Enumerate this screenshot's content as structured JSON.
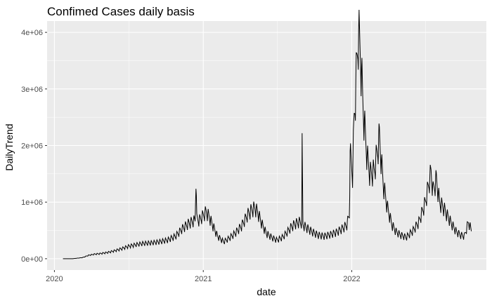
{
  "chart_data": {
    "type": "line",
    "title": "Confimed Cases daily basis",
    "xlabel": "date",
    "ylabel": "DailyTrend",
    "x_ticks": [
      "2020",
      "2021",
      "2022"
    ],
    "y_ticks": [
      "0e+00",
      "1e+06",
      "2e+06",
      "3e+06",
      "4e+06"
    ],
    "xlim": [
      "2019-12-14",
      "2022-11-28"
    ],
    "ylim": [
      -200000,
      4200000
    ],
    "grid": true,
    "background": "#ebebeb",
    "grid_color": "#ffffff",
    "line_color": "#000000",
    "series": [
      {
        "x": [
          "2020-01-22",
          "2020-02-15",
          "2020-03-10",
          "2020-03-25",
          "2020-04-08",
          "2020-04-22",
          "2020-05-10",
          "2020-05-28",
          "2020-06-15",
          "2020-07-01",
          "2020-07-20",
          "2020-08-05",
          "2020-08-25",
          "2020-09-15",
          "2020-10-05",
          "2020-10-25",
          "2020-11-10",
          "2020-11-25",
          "2020-12-05",
          "2020-12-12",
          "2020-12-14",
          "2020-12-16",
          "2020-12-22",
          "2020-12-31",
          "2021-01-08",
          "2021-01-15",
          "2021-01-25",
          "2021-02-05",
          "2021-02-20",
          "2021-03-05",
          "2021-03-20",
          "2021-04-05",
          "2021-04-20",
          "2021-05-01",
          "2021-05-08",
          "2021-05-15",
          "2021-05-25",
          "2021-06-05",
          "2021-06-20",
          "2021-07-01",
          "2021-07-15",
          "2021-07-25",
          "2021-08-05",
          "2021-08-15",
          "2021-08-25",
          "2021-08-31",
          "2021-09-01",
          "2021-09-03",
          "2021-09-10",
          "2021-09-25",
          "2021-10-10",
          "2021-10-25",
          "2021-11-10",
          "2021-11-25",
          "2021-12-10",
          "2021-12-20",
          "2021-12-26",
          "2021-12-28",
          "2022-01-03",
          "2022-01-07",
          "2022-01-12",
          "2022-01-17",
          "2022-01-23",
          "2022-01-28",
          "2022-02-03",
          "2022-02-08",
          "2022-02-15",
          "2022-02-25",
          "2022-03-05",
          "2022-03-10",
          "2022-03-15",
          "2022-03-20",
          "2022-03-30",
          "2022-04-10",
          "2022-04-20",
          "2022-05-01",
          "2022-05-15",
          "2022-06-01",
          "2022-06-15",
          "2022-07-01",
          "2022-07-10",
          "2022-07-15",
          "2022-07-20",
          "2022-07-28",
          "2022-08-05",
          "2022-08-15",
          "2022-08-25",
          "2022-09-05",
          "2022-09-15",
          "2022-09-25",
          "2022-10-05",
          "2022-10-15",
          "2022-10-22"
        ],
        "values": [
          0,
          0,
          20000,
          60000,
          80000,
          90000,
          110000,
          140000,
          180000,
          220000,
          250000,
          270000,
          280000,
          300000,
          330000,
          400000,
          530000,
          620000,
          660000,
          680000,
          1480000,
          700000,
          680000,
          760000,
          830000,
          750000,
          580000,
          400000,
          300000,
          360000,
          450000,
          580000,
          780000,
          870000,
          900000,
          820000,
          620000,
          450000,
          370000,
          330000,
          380000,
          460000,
          560000,
          620000,
          650000,
          640000,
          1950000,
          600000,
          560000,
          480000,
          420000,
          400000,
          430000,
          470000,
          540000,
          600000,
          780000,
          1850000,
          1500000,
          2500000,
          3200000,
          4000000,
          3600000,
          2800000,
          2200000,
          1800000,
          1500000,
          1550000,
          1900000,
          2150000,
          1700000,
          1300000,
          900000,
          600000,
          480000,
          420000,
          380000,
          500000,
          650000,
          1000000,
          1350000,
          1530000,
          1200000,
          1400000,
          1000000,
          900000,
          750000,
          600000,
          480000,
          420000,
          400000,
          650000,
          500000
        ]
      }
    ]
  }
}
